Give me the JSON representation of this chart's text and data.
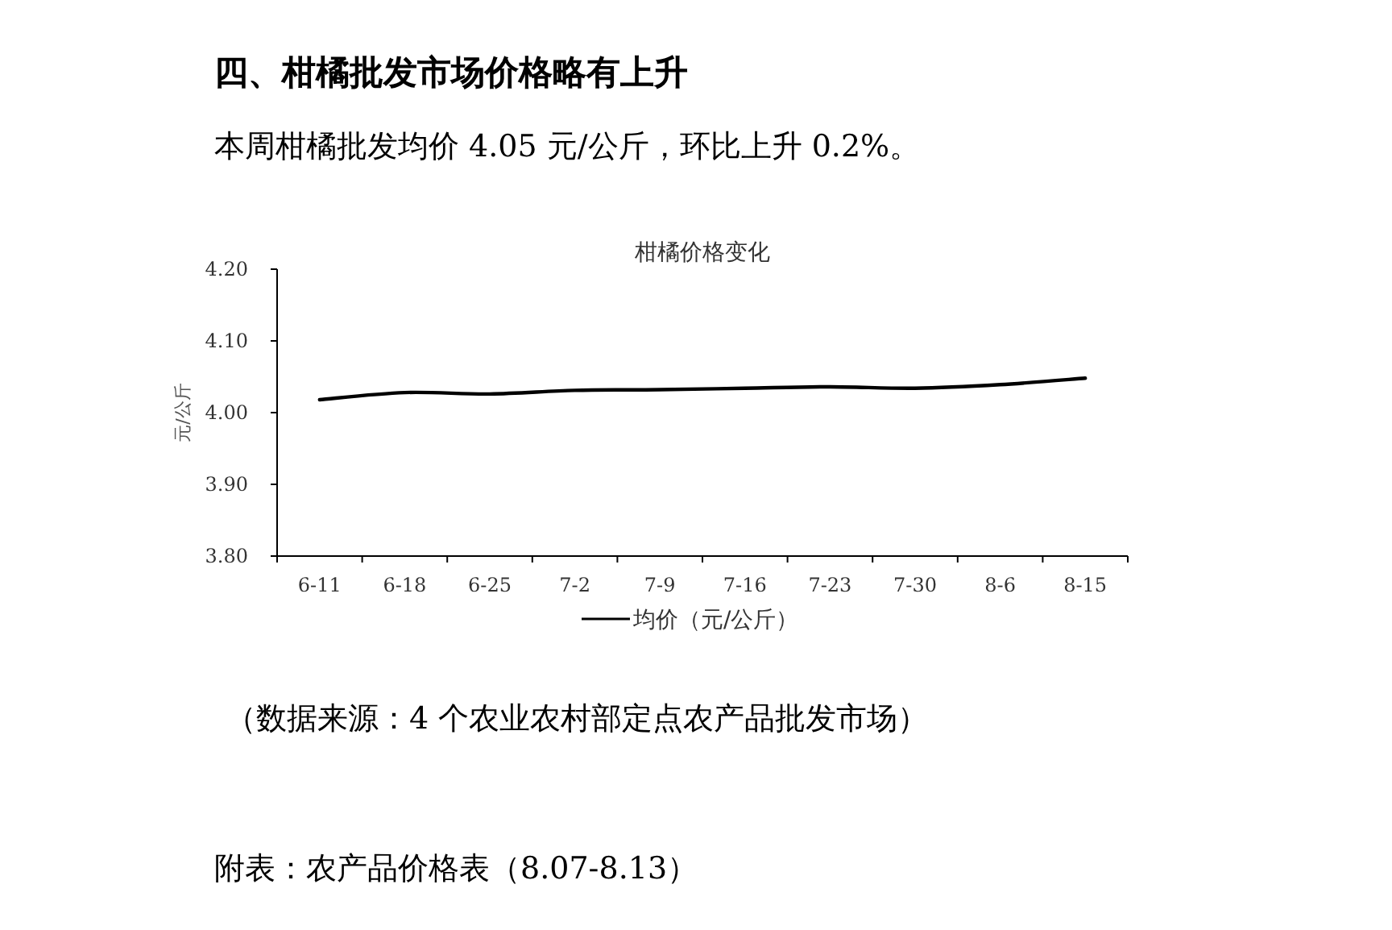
{
  "chart_data": {
    "type": "line",
    "title": "柑橘价格变化",
    "ylabel": "元/公斤",
    "annotations": [
      "四、柑橘批发市场价格略有上升",
      "本周柑橘批发均价 4.05 元/公斤，环比上升 0.2%。",
      "（数据来源：4 个农业农村部定点农产品批发市场）",
      "附表：农产品价格表（8.07-8.13）"
    ],
    "categories": [
      "6-11",
      "6-18",
      "6-25",
      "7-2",
      "7-9",
      "7-16",
      "7-23",
      "7-30",
      "8-6",
      "8-15"
    ],
    "series": [
      {
        "name": "均价（元/公斤）",
        "color": "#000000",
        "values": [
          4.018,
          4.028,
          4.026,
          4.031,
          4.032,
          4.034,
          4.036,
          4.034,
          4.039,
          4.048
        ]
      }
    ],
    "ylim": [
      3.8,
      4.2
    ],
    "yticks": [
      {
        "value": 3.8,
        "label": "3.80"
      },
      {
        "value": 3.9,
        "label": "3.90"
      },
      {
        "value": 4.0,
        "label": "4.00"
      },
      {
        "value": 4.1,
        "label": "4.10"
      },
      {
        "value": 4.2,
        "label": "4.20"
      }
    ],
    "legend": "bottom"
  }
}
